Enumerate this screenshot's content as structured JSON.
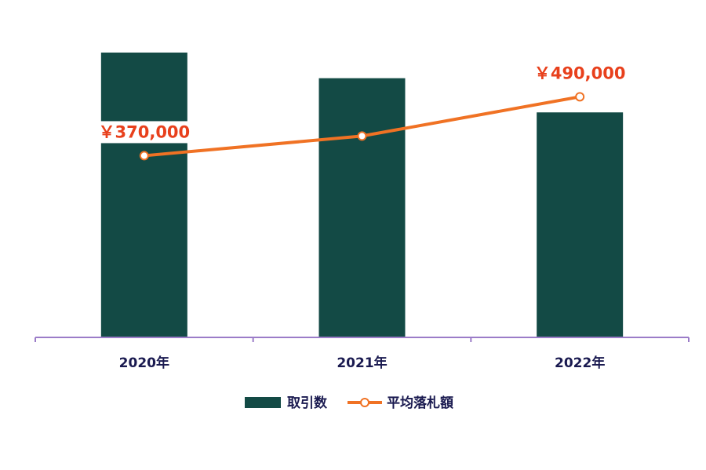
{
  "chart_data": {
    "type": "bar",
    "categories": [
      "2020年",
      "2021年",
      "2022年"
    ],
    "series": [
      {
        "name": "取引数",
        "type": "bar",
        "color": "#134a45",
        "values": [
          100,
          91,
          79
        ]
      },
      {
        "name": "平均落札額",
        "type": "line",
        "axis": "y2",
        "color": "#f07224",
        "values": [
          370000,
          410000,
          490000
        ],
        "value_labels": [
          "￥370,000",
          null,
          "￥490,000"
        ],
        "label_color": "#e8401c"
      }
    ],
    "ylim": [
      0,
      100
    ],
    "y2lim": [
      0,
      580000
    ],
    "grid": false,
    "legend": "bottom"
  }
}
